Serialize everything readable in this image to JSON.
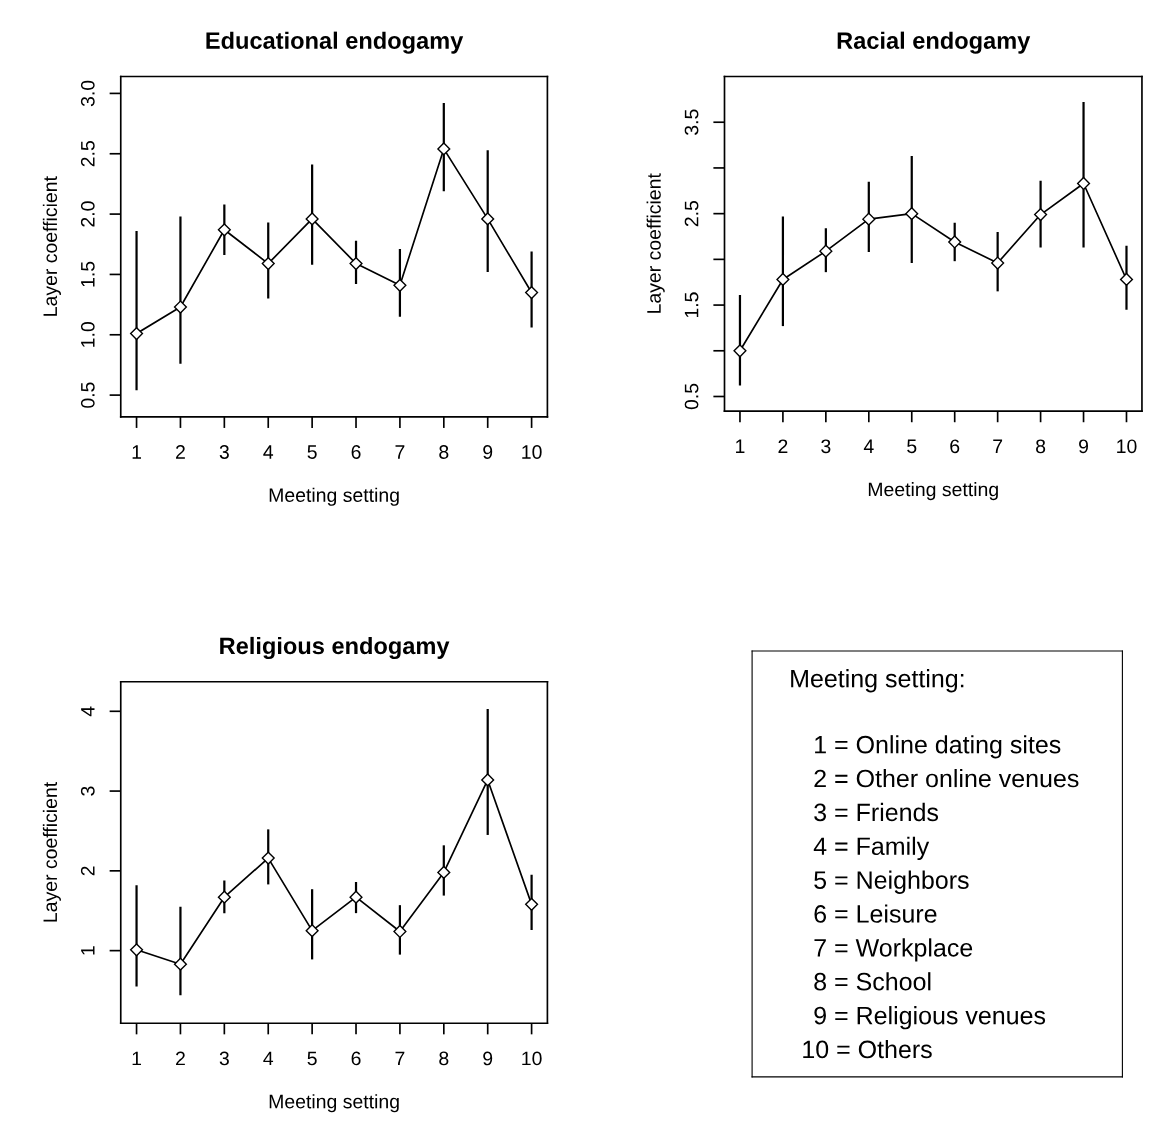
{
  "chart_data": [
    {
      "type": "line",
      "title": "Educational endogamy",
      "xlabel": "Meeting setting",
      "ylabel": "Layer coefficient",
      "marker": "diamond",
      "line_style": "solid",
      "grid": false,
      "legend": false,
      "x": [
        1,
        2,
        3,
        4,
        5,
        6,
        7,
        8,
        9,
        10
      ],
      "xlim": [
        0.64,
        10.36
      ],
      "xticks": [
        1,
        2,
        3,
        4,
        5,
        6,
        7,
        8,
        9,
        10
      ],
      "ylim": [
        0.32,
        3.14
      ],
      "yticks": [
        {
          "value": 0.5,
          "label": "0.5"
        },
        {
          "value": 1.0,
          "label": "1.0"
        },
        {
          "value": 1.5,
          "label": "1.5"
        },
        {
          "value": 2.0,
          "label": "2.0"
        },
        {
          "value": 2.5,
          "label": "2.5"
        },
        {
          "value": 3.0,
          "label": "3.0"
        }
      ],
      "series": [
        {
          "color": "#000000",
          "values": [
            1.01,
            1.23,
            1.87,
            1.59,
            1.96,
            1.59,
            1.41,
            2.54,
            1.96,
            1.35
          ],
          "errors": [
            [
              0.54,
              1.86
            ],
            [
              0.76,
              1.98
            ],
            [
              1.66,
              2.08
            ],
            [
              1.3,
              1.93
            ],
            [
              1.58,
              2.41
            ],
            [
              1.42,
              1.78
            ],
            [
              1.15,
              1.71
            ],
            [
              2.19,
              2.92
            ],
            [
              1.52,
              2.53
            ],
            [
              1.06,
              1.69
            ]
          ]
        }
      ]
    },
    {
      "type": "line",
      "title": "Racial endogamy",
      "xlabel": "Meeting setting",
      "ylabel": "Layer coefficient",
      "marker": "diamond",
      "line_style": "solid",
      "grid": false,
      "legend": false,
      "x": [
        1,
        2,
        3,
        4,
        5,
        6,
        7,
        8,
        9,
        10
      ],
      "xlim": [
        0.64,
        10.36
      ],
      "xticks": [
        1,
        2,
        3,
        4,
        5,
        6,
        7,
        8,
        9,
        10
      ],
      "ylim": [
        0.34,
        4.0
      ],
      "yticks": [
        0.5,
        {
          "value": 1.0,
          "label": null
        },
        1.5,
        {
          "value": 2.0,
          "label": null
        },
        2.5,
        {
          "value": 3.0,
          "label": null
        },
        3.5
      ],
      "series": [
        {
          "color": "#000000",
          "values": [
            1.0,
            1.78,
            2.09,
            2.44,
            2.5,
            2.19,
            1.96,
            2.49,
            2.83,
            1.78
          ],
          "errors": [
            [
              0.62,
              1.61
            ],
            [
              1.27,
              2.47
            ],
            [
              1.86,
              2.34
            ],
            [
              2.08,
              2.85
            ],
            [
              1.96,
              3.13
            ],
            [
              1.98,
              2.4
            ],
            [
              1.65,
              2.3
            ],
            [
              2.13,
              2.86
            ],
            [
              2.13,
              3.72
            ],
            [
              1.45,
              2.15
            ]
          ]
        }
      ]
    },
    {
      "type": "line",
      "title": "Religious endogamy",
      "xlabel": "Meeting setting",
      "ylabel": "Layer coefficient",
      "marker": "diamond",
      "line_style": "solid",
      "grid": false,
      "legend": false,
      "x": [
        1,
        2,
        3,
        4,
        5,
        6,
        7,
        8,
        9,
        10
      ],
      "xlim": [
        0.64,
        10.36
      ],
      "xticks": [
        1,
        2,
        3,
        4,
        5,
        6,
        7,
        8,
        9,
        10
      ],
      "ylim": [
        0.09,
        4.37
      ],
      "yticks": [
        1,
        2,
        3,
        4
      ],
      "series": [
        {
          "color": "#000000",
          "values": [
            1.01,
            0.83,
            1.67,
            2.16,
            1.25,
            1.67,
            1.24,
            1.98,
            3.14,
            1.58
          ],
          "errors": [
            [
              0.55,
              1.82
            ],
            [
              0.44,
              1.55
            ],
            [
              1.47,
              1.88
            ],
            [
              1.83,
              2.52
            ],
            [
              0.89,
              1.77
            ],
            [
              1.47,
              1.86
            ],
            [
              0.95,
              1.57
            ],
            [
              1.69,
              2.32
            ],
            [
              2.45,
              4.03
            ],
            [
              1.26,
              1.95
            ]
          ]
        }
      ]
    },
    {
      "type": "other",
      "title": "Meeting setting:",
      "annotations": [
        "1 = Online dating sites",
        "2 = Other online venues",
        "3 = Friends",
        "4 = Family",
        "5 = Neighbors",
        "6 = Leisure",
        "7 = Workplace",
        "8 = School",
        "9 = Religious venues",
        "10 = Others"
      ]
    }
  ]
}
